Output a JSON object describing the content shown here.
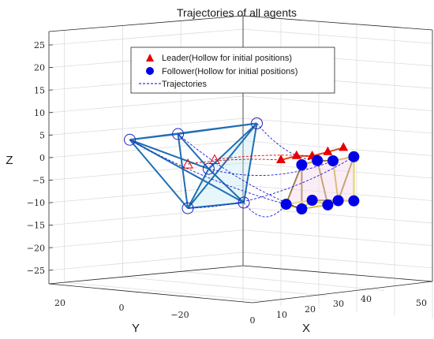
{
  "chart_data": {
    "type": "scatter",
    "title": "Trajectories of all agents",
    "xlabel": "X",
    "ylabel": "Y",
    "zlabel": "Z",
    "xlim": [
      0,
      50
    ],
    "ylim": [
      -20,
      20
    ],
    "zlim": [
      -28,
      28
    ],
    "x_ticks": [
      "0",
      "10",
      "20",
      "30",
      "40",
      "50"
    ],
    "y_ticks": [
      "20",
      "0",
      "−20"
    ],
    "z_ticks": [
      "25",
      "20",
      "15",
      "10",
      "5",
      "0",
      "−5",
      "−10",
      "−15",
      "−20",
      "−25"
    ],
    "grid": true,
    "legend_position": "top-center",
    "legend": [
      {
        "label": "Leader(Hollow for initial positions)",
        "marker": "triangle",
        "color": "#e60000"
      },
      {
        "label": "Follower(Hollow for initial positions)",
        "marker": "circle",
        "color": "#0000e6"
      },
      {
        "label": "Trajectories",
        "marker": "dashed-line",
        "color": "#0000e6"
      }
    ],
    "series": [
      {
        "role": "leader",
        "initial": [
          {
            "x": -10,
            "y": 5,
            "z": -1
          },
          {
            "x": -2,
            "y": 3,
            "z": 0
          }
        ],
        "final": [
          {
            "x": 20,
            "y": 0,
            "z": 0
          },
          {
            "x": 26,
            "y": 0,
            "z": 1
          },
          {
            "x": 32,
            "y": 0,
            "z": 1
          },
          {
            "x": 38,
            "y": 0,
            "z": 2
          },
          {
            "x": 44,
            "y": 0,
            "z": 3
          }
        ]
      },
      {
        "role": "follower",
        "initial": [
          {
            "x": -15,
            "y": 20,
            "z": 5
          },
          {
            "x": -8,
            "y": 10,
            "z": 6
          },
          {
            "x": 5,
            "y": -5,
            "z": 8
          },
          {
            "x": -2,
            "y": 5,
            "z": -2
          },
          {
            "x": -10,
            "y": 5,
            "z": -11
          },
          {
            "x": 0,
            "y": -5,
            "z": -10
          }
        ],
        "final": [
          {
            "x": 22,
            "y": 0,
            "z": -10
          },
          {
            "x": 28,
            "y": 0,
            "z": -1
          },
          {
            "x": 28,
            "y": 0,
            "z": -11
          },
          {
            "x": 32,
            "y": 0,
            "z": -9
          },
          {
            "x": 34,
            "y": 0,
            "z": 0
          },
          {
            "x": 38,
            "y": 0,
            "z": -10
          },
          {
            "x": 40,
            "y": 0,
            "z": 0
          },
          {
            "x": 42,
            "y": 0,
            "z": -9
          },
          {
            "x": 48,
            "y": 0,
            "z": 1
          },
          {
            "x": 48,
            "y": 0,
            "z": -9
          }
        ]
      }
    ]
  }
}
